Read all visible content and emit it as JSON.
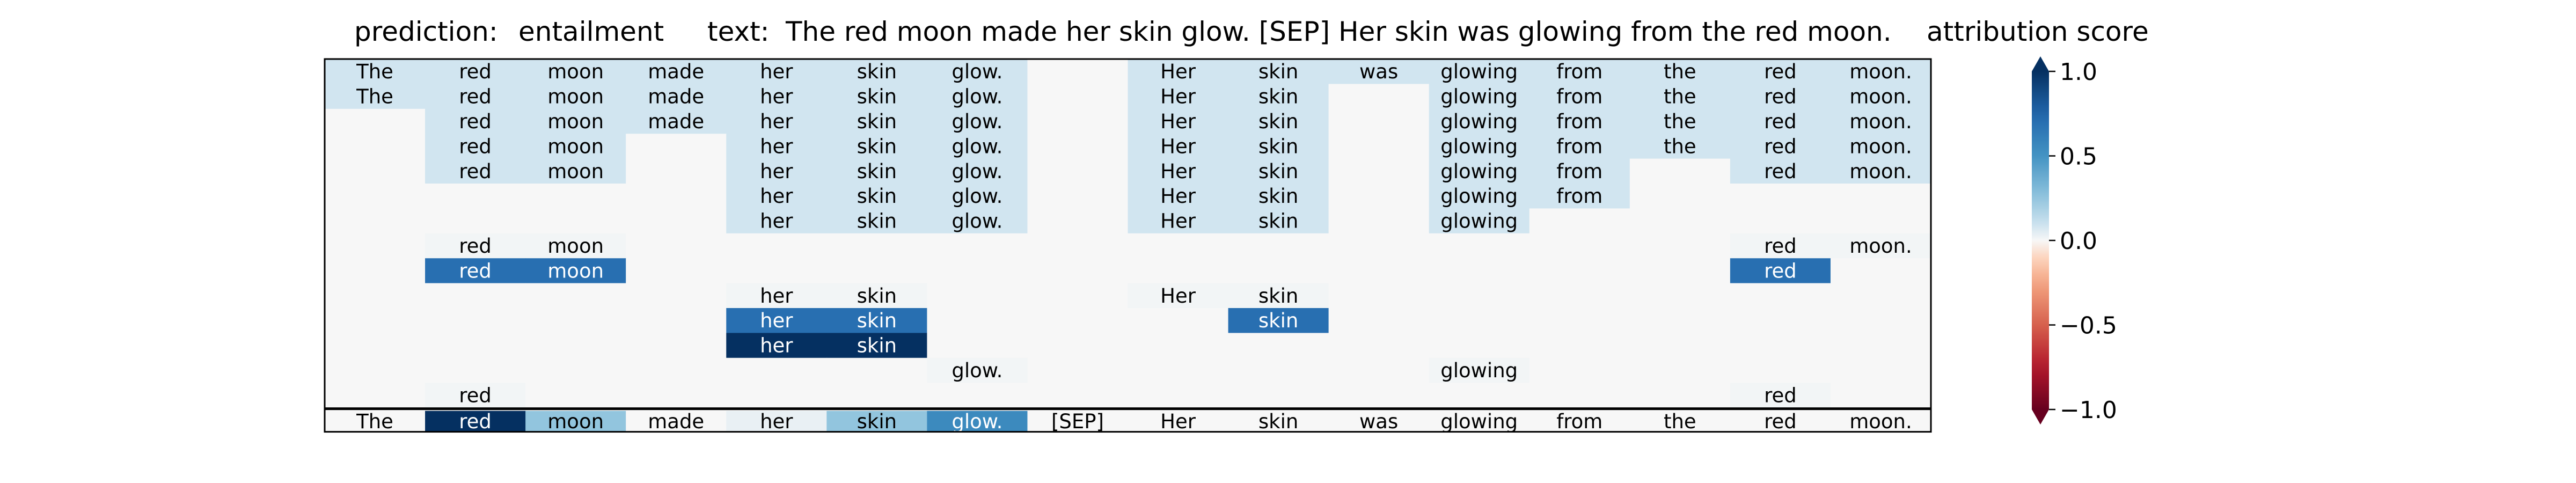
{
  "header": {
    "prediction_label": "prediction:",
    "prediction_value": "entailment",
    "text_label": "text:",
    "text_value": "The red moon made her skin glow. [SEP] Her skin was glowing from the red moon.",
    "colorbar_title": "attribution score"
  },
  "chart_data": {
    "type": "heatmap",
    "title": "attribution score",
    "colormap": "RdBu",
    "colors": {
      "pos_max": "#053061",
      "mid": "#f7f7f7",
      "neg_max": "#67001f"
    },
    "columns": [
      "The",
      "red",
      "moon",
      "made",
      "her",
      "skin",
      "glow.",
      "[SEP]",
      "Her",
      "skin",
      "was",
      "glowing",
      "from",
      "the",
      "red",
      "moon."
    ],
    "rows": [
      {
        "tokens": [
          "The",
          "red",
          "moon",
          "made",
          "her",
          "skin",
          "glow.",
          "",
          "Her",
          "skin",
          "was",
          "glowing",
          "from",
          "the",
          "red",
          "moon."
        ],
        "values": [
          0.08,
          0.08,
          0.08,
          0.08,
          0.08,
          0.08,
          0.08,
          0,
          0.08,
          0.08,
          0.08,
          0.08,
          0.08,
          0.08,
          0.08,
          0.08
        ]
      },
      {
        "tokens": [
          "The",
          "red",
          "moon",
          "made",
          "her",
          "skin",
          "glow.",
          "",
          "Her",
          "skin",
          "",
          "glowing",
          "from",
          "the",
          "red",
          "moon."
        ],
        "values": [
          0.08,
          0.08,
          0.08,
          0.08,
          0.08,
          0.08,
          0.08,
          0,
          0.08,
          0.08,
          0,
          0.08,
          0.08,
          0.08,
          0.08,
          0.08
        ]
      },
      {
        "tokens": [
          "",
          "red",
          "moon",
          "made",
          "her",
          "skin",
          "glow.",
          "",
          "Her",
          "skin",
          "",
          "glowing",
          "from",
          "the",
          "red",
          "moon."
        ],
        "values": [
          0,
          0.08,
          0.08,
          0.08,
          0.08,
          0.08,
          0.08,
          0,
          0.08,
          0.08,
          0,
          0.08,
          0.08,
          0.08,
          0.08,
          0.08
        ]
      },
      {
        "tokens": [
          "",
          "red",
          "moon",
          "",
          "her",
          "skin",
          "glow.",
          "",
          "Her",
          "skin",
          "",
          "glowing",
          "from",
          "the",
          "red",
          "moon."
        ],
        "values": [
          0,
          0.08,
          0.08,
          0,
          0.08,
          0.08,
          0.08,
          0,
          0.08,
          0.08,
          0,
          0.08,
          0.08,
          0.08,
          0.08,
          0.08
        ]
      },
      {
        "tokens": [
          "",
          "red",
          "moon",
          "",
          "her",
          "skin",
          "glow.",
          "",
          "Her",
          "skin",
          "",
          "glowing",
          "from",
          "",
          "red",
          "moon."
        ],
        "values": [
          0,
          0.08,
          0.08,
          0,
          0.08,
          0.08,
          0.08,
          0,
          0.08,
          0.08,
          0,
          0.08,
          0.08,
          0,
          0.08,
          0.08
        ]
      },
      {
        "tokens": [
          "",
          "",
          "",
          "",
          "her",
          "skin",
          "glow.",
          "",
          "Her",
          "skin",
          "",
          "glowing",
          "from",
          "",
          "",
          ""
        ],
        "values": [
          0,
          0,
          0,
          0,
          0.08,
          0.08,
          0.08,
          0,
          0.08,
          0.08,
          0,
          0.08,
          0.08,
          0,
          0,
          0
        ]
      },
      {
        "tokens": [
          "",
          "",
          "",
          "",
          "her",
          "skin",
          "glow.",
          "",
          "Her",
          "skin",
          "",
          "glowing",
          "",
          "",
          "",
          ""
        ],
        "values": [
          0,
          0,
          0,
          0,
          0.08,
          0.08,
          0.08,
          0,
          0.08,
          0.08,
          0,
          0.08,
          0,
          0,
          0,
          0
        ]
      },
      {
        "tokens": [
          "",
          "red",
          "moon",
          "",
          "",
          "",
          "",
          "",
          "",
          "",
          "",
          "",
          "",
          "",
          "red",
          "moon."
        ],
        "values": [
          0,
          0.01,
          0.01,
          0,
          0,
          0,
          0,
          0,
          0,
          0,
          0,
          0,
          0,
          0,
          0.01,
          0.01
        ]
      },
      {
        "tokens": [
          "",
          "red",
          "moon",
          "",
          "",
          "",
          "",
          "",
          "",
          "",
          "",
          "",
          "",
          "",
          "red",
          ""
        ],
        "values": [
          0,
          0.7,
          0.7,
          0,
          0,
          0,
          0,
          0,
          0,
          0,
          0,
          0,
          0,
          0,
          0.7,
          0
        ]
      },
      {
        "tokens": [
          "",
          "",
          "",
          "",
          "her",
          "skin",
          "",
          "",
          "Her",
          "skin",
          "",
          "",
          "",
          "",
          "",
          ""
        ],
        "values": [
          0,
          0,
          0,
          0,
          0.01,
          0.01,
          0,
          0,
          0.01,
          0.01,
          0,
          0,
          0,
          0,
          0,
          0
        ]
      },
      {
        "tokens": [
          "",
          "",
          "",
          "",
          "her",
          "skin",
          "",
          "",
          "",
          "skin",
          "",
          "",
          "",
          "",
          "",
          ""
        ],
        "values": [
          0,
          0,
          0,
          0,
          0.7,
          0.7,
          0,
          0,
          0,
          0.7,
          0,
          0,
          0,
          0,
          0,
          0
        ]
      },
      {
        "tokens": [
          "",
          "",
          "",
          "",
          "her",
          "skin",
          "",
          "",
          "",
          "",
          "",
          "",
          "",
          "",
          "",
          ""
        ],
        "values": [
          0,
          0,
          0,
          0,
          1.0,
          1.0,
          0,
          0,
          0,
          0,
          0,
          0,
          0,
          0,
          0,
          0
        ]
      },
      {
        "tokens": [
          "",
          "",
          "",
          "",
          "",
          "",
          "glow.",
          "",
          "",
          "",
          "",
          "glowing",
          "",
          "",
          "",
          ""
        ],
        "values": [
          0,
          0,
          0,
          0,
          0,
          0,
          0.01,
          0,
          0,
          0,
          0,
          0.01,
          0,
          0,
          0,
          0
        ]
      },
      {
        "tokens": [
          "",
          "red",
          "",
          "",
          "",
          "",
          "",
          "",
          "",
          "",
          "",
          "",
          "",
          "",
          "red",
          ""
        ],
        "values": [
          0,
          0.01,
          0,
          0,
          0,
          0,
          0,
          0,
          0,
          0,
          0,
          0,
          0,
          0,
          0.01,
          0
        ]
      }
    ],
    "summary_row": {
      "tokens": [
        "The",
        "red",
        "moon",
        "made",
        "her",
        "skin",
        "glow.",
        "[SEP]",
        "Her",
        "skin",
        "was",
        "glowing",
        "from",
        "the",
        "red",
        "moon."
      ],
      "values": [
        0.0,
        1.0,
        0.25,
        0.0,
        0.03,
        0.25,
        0.55,
        0.0,
        0.0,
        0.0,
        0.0,
        0.0,
        0.0,
        0.0,
        0.0,
        0.0
      ]
    },
    "colorbar": {
      "range": [
        -1.0,
        1.0
      ],
      "ticks": [
        "1.0",
        "0.5",
        "0.0",
        "−0.5",
        "−1.0"
      ],
      "tick_values": [
        1.0,
        0.5,
        0.0,
        -0.5,
        -1.0
      ]
    }
  }
}
